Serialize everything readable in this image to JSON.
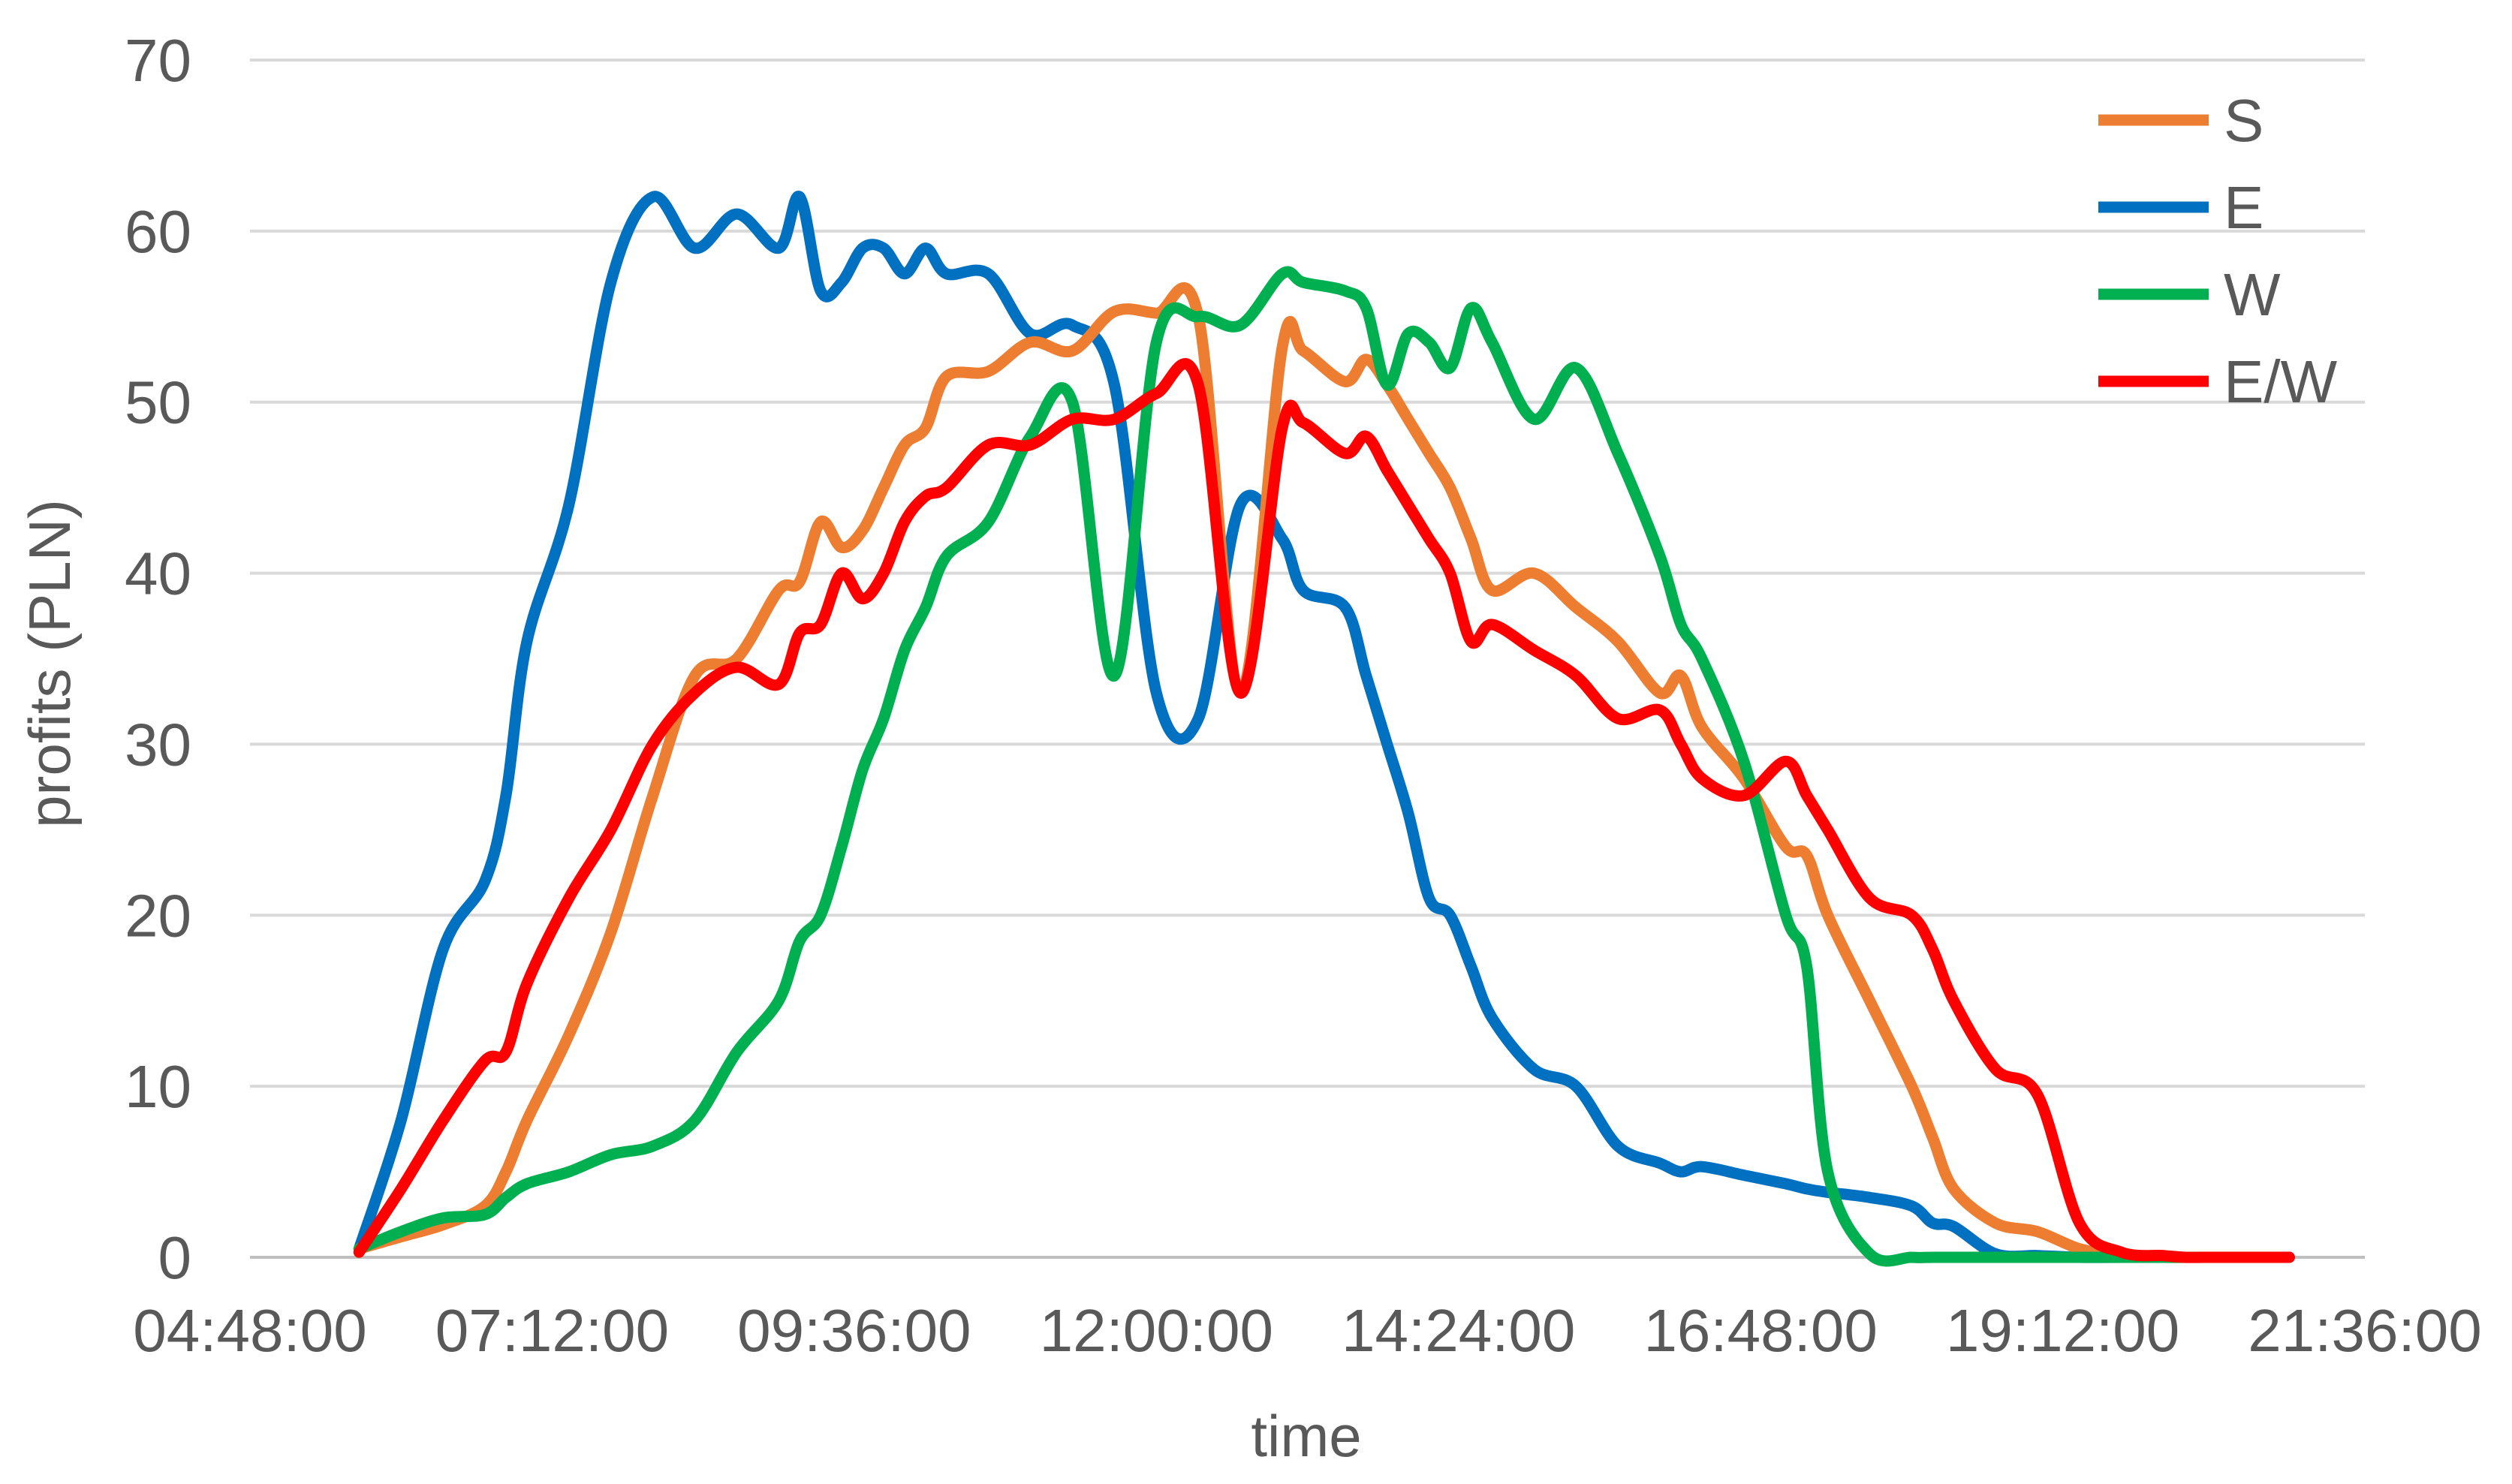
{
  "chart_data": {
    "type": "line",
    "xlabel": "time",
    "ylabel": "profits (PLN)",
    "ylim": [
      0,
      70
    ],
    "yticks": [
      0,
      10,
      20,
      30,
      40,
      50,
      60,
      70
    ],
    "xlim": [
      "04:48:00",
      "21:36:00"
    ],
    "xticks": [
      "04:48:00",
      "07:12:00",
      "09:36:00",
      "12:00:00",
      "14:24:00",
      "16:48:00",
      "19:12:00",
      "21:36:00"
    ],
    "grid": "horizontal",
    "legend_position": "top-right",
    "x": [
      "05:40",
      "06:00",
      "06:20",
      "06:40",
      "06:50",
      "07:00",
      "07:20",
      "07:40",
      "08:00",
      "08:20",
      "08:40",
      "09:00",
      "09:10",
      "09:20",
      "09:30",
      "09:40",
      "09:50",
      "10:00",
      "10:10",
      "10:20",
      "10:40",
      "11:00",
      "11:20",
      "11:40",
      "12:00",
      "12:20",
      "12:40",
      "13:00",
      "13:10",
      "13:30",
      "13:40",
      "13:50",
      "14:00",
      "14:10",
      "14:20",
      "14:30",
      "14:40",
      "15:00",
      "15:20",
      "15:40",
      "16:00",
      "16:10",
      "16:20",
      "16:40",
      "17:00",
      "17:10",
      "17:20",
      "17:40",
      "18:00",
      "18:10",
      "18:20",
      "18:40",
      "19:00",
      "19:20",
      "19:40",
      "20:00",
      "20:10",
      "20:20",
      "20:40",
      "21:00"
    ],
    "series": [
      {
        "name": "S",
        "color": "#ED7D31",
        "values": [
          0.5,
          1.2,
          1.9,
          3,
          5,
          8,
          13,
          19,
          27,
          34,
          35,
          39,
          39.5,
          43,
          41.5,
          42.5,
          45,
          47.5,
          48.5,
          51.5,
          51.8,
          53.5,
          53,
          55.3,
          55.2,
          55,
          33,
          53.2,
          53,
          51.2,
          52.5,
          51,
          49,
          47,
          45,
          42,
          39,
          40,
          38,
          36,
          33,
          34,
          31,
          28,
          24,
          23.5,
          20,
          15,
          10,
          7,
          4,
          2,
          1.5,
          0.5,
          0.1,
          0,
          0,
          0,
          0,
          0
        ]
      },
      {
        "name": "E",
        "color": "#0070C0",
        "values": [
          0.5,
          8,
          18,
          22,
          27,
          36,
          44,
          57,
          62,
          59,
          61,
          59,
          62,
          56.5,
          57,
          59,
          59,
          57.5,
          59,
          57.5,
          57.5,
          54,
          54.5,
          51,
          33,
          31.5,
          44,
          42,
          39,
          38,
          34,
          30,
          26,
          21,
          20,
          17,
          14,
          11,
          10,
          6.5,
          5.5,
          5,
          5.3,
          4.8,
          4.3,
          4,
          3.8,
          3.5,
          3,
          2,
          1.8,
          0.2,
          0.1,
          0,
          0,
          0,
          0,
          0,
          0,
          0
        ]
      },
      {
        "name": "W",
        "color": "#00B050",
        "values": [
          0.5,
          1.5,
          2.3,
          2.5,
          3.5,
          4.3,
          5,
          6,
          6.5,
          8,
          12,
          15,
          18.5,
          20,
          24,
          28.5,
          31.5,
          35.5,
          38,
          41,
          43,
          48,
          50,
          34,
          53.5,
          55,
          54.5,
          57.5,
          57,
          56.5,
          55.5,
          51,
          54,
          53.5,
          52,
          55.5,
          53.5,
          49,
          52,
          47,
          41,
          37,
          35,
          29,
          20,
          17,
          5,
          0.2,
          0,
          0,
          0,
          0,
          0,
          0,
          0,
          0,
          0,
          0,
          0,
          0
        ]
      },
      {
        "name": "E/W",
        "color": "#FF0000",
        "values": [
          0.3,
          4,
          8,
          11.5,
          12,
          16,
          21,
          25,
          30,
          33,
          34.5,
          33.5,
          36.5,
          37,
          40,
          38.5,
          40,
          43,
          44.5,
          45,
          47.5,
          47.5,
          49,
          49,
          50.5,
          51,
          33,
          48.5,
          48.8,
          47,
          48,
          46,
          44,
          42,
          40,
          36,
          37,
          35.5,
          34,
          31.5,
          32,
          30,
          28,
          27,
          29,
          27,
          25,
          21,
          20,
          18,
          15,
          11,
          9.5,
          2,
          0.3,
          0.1,
          0,
          0,
          0,
          0
        ]
      }
    ]
  }
}
